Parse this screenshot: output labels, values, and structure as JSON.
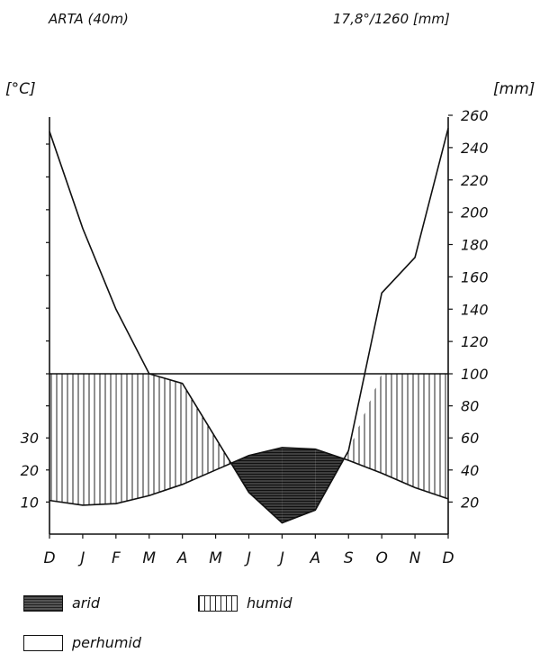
{
  "header": {
    "station": "ARTA (40m)",
    "summary": "17,8°/1260 [mm]"
  },
  "chart_data": {
    "type": "line",
    "title": "ARTA (40m)",
    "subtitle": "17,8°/1260 [mm]",
    "left_axis": {
      "unit_label": "[°C]",
      "range": [
        0,
        130
      ],
      "tick_labels": [
        "10",
        "20",
        "30"
      ],
      "tick_values": [
        10,
        20,
        30
      ]
    },
    "right_axis": {
      "unit_label": "[mm]",
      "range": [
        0,
        260
      ],
      "tick_labels": [
        "20",
        "40",
        "60",
        "80",
        "100",
        "120",
        "140",
        "160",
        "180",
        "200",
        "220",
        "240",
        "260"
      ],
      "tick_values": [
        20,
        40,
        60,
        80,
        100,
        120,
        140,
        160,
        180,
        200,
        220,
        240,
        260
      ],
      "scale_change": "above 100 mm the scale is compressed 1:10"
    },
    "categories": [
      "D",
      "J",
      "F",
      "M",
      "A",
      "M",
      "J",
      "J",
      "A",
      "S",
      "O",
      "N",
      "D"
    ],
    "series": [
      {
        "key": "temperature",
        "unit": "°C",
        "values": [
          10.5,
          9.0,
          9.5,
          12.0,
          15.5,
          20.0,
          24.5,
          27.0,
          26.5,
          23.0,
          19.0,
          14.5,
          11.0
        ]
      },
      {
        "key": "precipitation",
        "unit": "mm",
        "values": [
          250,
          190,
          140,
          100,
          94,
          60,
          26,
          7,
          15,
          52,
          150,
          172,
          252
        ]
      }
    ],
    "legend": [
      {
        "key": "arid",
        "label": "arid",
        "pattern": "horizontal-hatch-dark"
      },
      {
        "key": "humid",
        "label": "humid",
        "pattern": "vertical-hatch"
      },
      {
        "key": "perhumid",
        "label": "perhumid",
        "pattern": "empty"
      }
    ],
    "legend_position": "bottom-left",
    "grid": false
  }
}
